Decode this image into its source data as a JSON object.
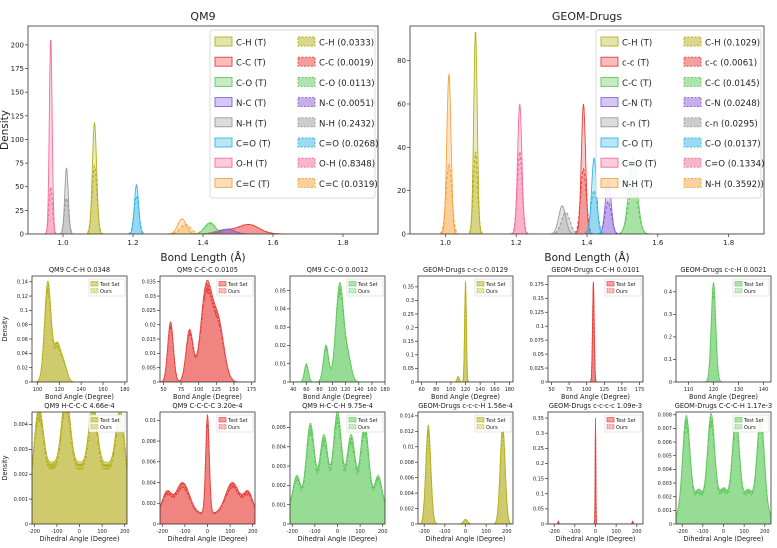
{
  "colors": {
    "olive": "#b5b01a",
    "red": "#e8403c",
    "green": "#5ec95a",
    "purple": "#8a5fd6",
    "gray": "#9a9a9a",
    "cyan": "#36b7e6",
    "pink": "#f56c9a",
    "orange": "#f5a33a",
    "grayDark": "#7b7b7b",
    "pinkDark": "#e2508f",
    "oliveDark": "#9a8a2a"
  },
  "chart_data": [
    {
      "type": "area",
      "title": "QM9",
      "xlabel": "Bond Length (Å)",
      "ylabel": "Density",
      "xlim": [
        0.9,
        1.9
      ],
      "ylim": [
        0,
        220
      ],
      "xticks": [
        1.0,
        1.2,
        1.4,
        1.6,
        1.8
      ],
      "yticks": [
        0,
        25,
        50,
        75,
        100,
        125,
        150,
        175,
        200
      ],
      "legend_position": "top-right",
      "legend_columns": [
        [
          "C-H (T)",
          "C-C (T)",
          "C-O (T)",
          "N-C (T)",
          "N-H (T)",
          "C=O (T)",
          "O-H (T)",
          "C=C (T)"
        ],
        [
          "C-H (0.0333)",
          "C-C (0.0019)",
          "C-O (0.0113)",
          "N-C (0.0051)",
          "N-H (0.2432)",
          "C=O (0.0268)",
          "O-H (0.8348)",
          "C=C (0.0319)"
        ]
      ],
      "series": [
        {
          "name": "C-H",
          "color": "olive",
          "peaks": [
            [
              1.09,
              0.006,
              118
            ]
          ],
          "pred_peaks": [
            [
              1.09,
              0.007,
              72
            ]
          ]
        },
        {
          "name": "C-C",
          "color": "red",
          "peaks": [
            [
              1.53,
              0.03,
              10
            ],
            [
              1.46,
              0.025,
              4
            ]
          ],
          "pred_peaks": [
            [
              1.53,
              0.03,
              10
            ],
            [
              1.46,
              0.025,
              4
            ]
          ]
        },
        {
          "name": "C-O",
          "color": "green",
          "peaks": [
            [
              1.42,
              0.015,
              12
            ]
          ],
          "pred_peaks": [
            [
              1.42,
              0.016,
              11
            ]
          ]
        },
        {
          "name": "N-C",
          "color": "purple",
          "peaks": [
            [
              1.47,
              0.02,
              5
            ]
          ],
          "pred_peaks": [
            [
              1.47,
              0.02,
              5
            ]
          ]
        },
        {
          "name": "N-H",
          "color": "gray",
          "peaks": [
            [
              1.01,
              0.005,
              70
            ]
          ],
          "pred_peaks": [
            [
              1.01,
              0.006,
              38
            ]
          ]
        },
        {
          "name": "C=O",
          "color": "cyan",
          "peaks": [
            [
              1.21,
              0.006,
              52
            ]
          ],
          "pred_peaks": [
            [
              1.21,
              0.007,
              40
            ]
          ]
        },
        {
          "name": "O-H",
          "color": "pink",
          "peaks": [
            [
              0.965,
              0.004,
              208
            ]
          ],
          "pred_peaks": [
            [
              0.965,
              0.005,
              50
            ]
          ]
        },
        {
          "name": "C=C",
          "color": "orange",
          "peaks": [
            [
              1.34,
              0.012,
              16
            ]
          ],
          "pred_peaks": [
            [
              1.35,
              0.015,
              10
            ]
          ]
        }
      ]
    },
    {
      "type": "area",
      "title": "GEOM-Drugs",
      "xlabel": "Bond Length (Å)",
      "ylabel": "",
      "xlim": [
        0.9,
        1.9
      ],
      "ylim": [
        0,
        96
      ],
      "xticks": [
        1.0,
        1.2,
        1.4,
        1.6,
        1.8
      ],
      "yticks": [
        0,
        20,
        40,
        60,
        80
      ],
      "legend_position": "top-right",
      "legend_columns": [
        [
          "C-H (T)",
          "c-c (T)",
          "C-C (T)",
          "C-N (T)",
          "c-n (T)",
          "C-O (T)",
          "C=O (T)",
          "N-H (T)"
        ],
        [
          "C-H (0.1029)",
          "c-c (0.0061)",
          "C-C (0.0145)",
          "C-N (0.0248)",
          "c-n (0.0295)",
          "C-O (0.0137)",
          "C=O (0.1334)",
          "N-H (0.3592))"
        ]
      ],
      "series": [
        {
          "name": "C-H",
          "color": "olive",
          "peaks": [
            [
              1.085,
              0.005,
              94
            ]
          ],
          "pred_peaks": [
            [
              1.085,
              0.006,
              38
            ]
          ]
        },
        {
          "name": "c-c",
          "color": "red",
          "peaks": [
            [
              1.39,
              0.006,
              60
            ]
          ],
          "pred_peaks": [
            [
              1.39,
              0.008,
              30
            ]
          ]
        },
        {
          "name": "C-C",
          "color": "green",
          "peaks": [
            [
              1.53,
              0.012,
              35
            ]
          ],
          "pred_peaks": [
            [
              1.53,
              0.013,
              22
            ]
          ]
        },
        {
          "name": "C-N",
          "color": "purple",
          "peaks": [
            [
              1.46,
              0.008,
              25
            ]
          ],
          "pred_peaks": [
            [
              1.46,
              0.009,
              15
            ]
          ]
        },
        {
          "name": "c-n",
          "color": "gray",
          "peaks": [
            [
              1.33,
              0.01,
              13
            ]
          ],
          "pred_peaks": [
            [
              1.34,
              0.012,
              10
            ]
          ]
        },
        {
          "name": "C-O",
          "color": "cyan",
          "peaks": [
            [
              1.42,
              0.007,
              35
            ]
          ],
          "pred_peaks": [
            [
              1.42,
              0.009,
              20
            ]
          ]
        },
        {
          "name": "C=O",
          "color": "pink",
          "peaks": [
            [
              1.21,
              0.006,
              60
            ]
          ],
          "pred_peaks": [
            [
              1.21,
              0.007,
              38
            ]
          ]
        },
        {
          "name": "N-H",
          "color": "orange",
          "peaks": [
            [
              1.01,
              0.006,
              74
            ]
          ],
          "pred_peaks": [
            [
              1.01,
              0.008,
              32
            ]
          ]
        }
      ]
    },
    {
      "type": "area",
      "title": "QM9 C-C-H 0.0348",
      "xlabel": "Bond Angle (Degree)",
      "ylabel": "Density",
      "color": "olive",
      "legend": [
        "Test Set",
        "Ours"
      ],
      "xlim": [
        95,
        182
      ],
      "ylim": [
        0,
        0.148
      ],
      "xticks": [
        100,
        120,
        140,
        160,
        180
      ],
      "yticks": [
        0.0,
        0.02,
        0.04,
        0.06,
        0.08,
        0.1,
        0.12,
        0.14
      ],
      "peaks": [
        [
          109.5,
          3,
          0.14
        ],
        [
          118,
          3,
          0.05
        ],
        [
          124,
          3,
          0.025
        ]
      ]
    },
    {
      "type": "area",
      "title": "QM9 C-C-C 0.0105",
      "xlabel": "Bond Angle (Degree)",
      "ylabel": "",
      "color": "red",
      "legend": [
        "Test Set",
        "Ours"
      ],
      "xlim": [
        45,
        180
      ],
      "ylim": [
        0,
        0.037
      ],
      "xticks": [
        50,
        75,
        100,
        125,
        150,
        175
      ],
      "yticks": [
        0.0,
        0.005,
        0.01,
        0.015,
        0.02,
        0.025,
        0.03,
        0.035
      ],
      "peaks": [
        [
          60,
          4,
          0.021
        ],
        [
          87,
          5,
          0.018
        ],
        [
          111,
          8,
          0.033
        ],
        [
          128,
          8,
          0.02
        ]
      ]
    },
    {
      "type": "area",
      "title": "QM9 C-C-O 0.0012",
      "xlabel": "Bond Angle (Degree)",
      "ylabel": "",
      "color": "green",
      "legend": [
        "Test Set",
        "Ours"
      ],
      "xlim": [
        35,
        180
      ],
      "ylim": [
        0,
        0.058
      ],
      "xticks": [
        40,
        60,
        80,
        100,
        120,
        140,
        160,
        180
      ],
      "yticks": [
        0.0,
        0.01,
        0.02,
        0.03,
        0.04,
        0.05
      ],
      "peaks": [
        [
          60,
          3,
          0.01
        ],
        [
          90,
          4,
          0.02
        ],
        [
          111,
          6,
          0.054
        ],
        [
          124,
          5,
          0.012
        ]
      ]
    },
    {
      "type": "area",
      "title": "GEOM-Drugs c-c-c 0.0129",
      "xlabel": "Bond Angle (Degree)",
      "ylabel": "",
      "color": "olive",
      "legend": [
        "Test Set",
        "Ours"
      ],
      "xlim": [
        55,
        185
      ],
      "ylim": [
        0,
        0.39
      ],
      "xticks": [
        60,
        80,
        100,
        120,
        140,
        160,
        180
      ],
      "yticks": [
        0.0,
        0.05,
        0.1,
        0.15,
        0.2,
        0.25,
        0.3,
        0.35
      ],
      "peaks": [
        [
          120,
          1.2,
          0.37
        ],
        [
          110,
          1.5,
          0.02
        ]
      ]
    },
    {
      "type": "area",
      "title": "GEOM-Drugs C-C-H 0.0101",
      "xlabel": "Bond Angle (Degree)",
      "ylabel": "",
      "color": "red",
      "legend": [
        "Test Set",
        "Ours"
      ],
      "xlim": [
        45,
        180
      ],
      "ylim": [
        0,
        0.19
      ],
      "xticks": [
        50,
        75,
        100,
        125,
        150,
        175
      ],
      "yticks": [
        0.0,
        0.025,
        0.05,
        0.075,
        0.1,
        0.125,
        0.15,
        0.175
      ],
      "peaks": [
        [
          109.5,
          1.2,
          0.18
        ]
      ]
    },
    {
      "type": "area",
      "title": "GEOM-Drugs c-c-H 0.0021",
      "xlabel": "Bond Angle (Degree)",
      "ylabel": "",
      "color": "green",
      "legend": [
        "Test Set",
        "Ours"
      ],
      "xlim": [
        105,
        143
      ],
      "ylim": [
        0,
        0.47
      ],
      "xticks": [
        110,
        120,
        130,
        140
      ],
      "yticks": [
        0.0,
        0.1,
        0.2,
        0.3,
        0.4
      ],
      "peaks": [
        [
          120,
          0.9,
          0.44
        ]
      ]
    },
    {
      "type": "area",
      "title": "QM9 H-C-C-C 4.66e-4",
      "xlabel": "Dihedral Angle (Degree)",
      "ylabel": "Density",
      "color": "olive",
      "legend": [
        "Test Set",
        "Ours"
      ],
      "xlim": [
        -210,
        210
      ],
      "ylim": [
        0,
        0.0045
      ],
      "xticks": [
        -200,
        -100,
        0,
        100,
        200
      ],
      "yticks": [
        0.0,
        0.001,
        0.002,
        0.003,
        0.004
      ],
      "peaks": [
        [
          -180,
          22,
          0.0038
        ],
        [
          -60,
          22,
          0.0042
        ],
        [
          60,
          22,
          0.0038
        ],
        [
          180,
          22,
          0.0037
        ],
        [
          -120,
          25,
          0.0015
        ],
        [
          0,
          25,
          0.0015
        ],
        [
          120,
          25,
          0.0015
        ]
      ],
      "base": 0.0008
    },
    {
      "type": "area",
      "title": "QM9 C-C-C-C 3.20e-4",
      "xlabel": "Dihedral Angle (Degree)",
      "ylabel": "",
      "color": "red",
      "legend": [
        "Test Set",
        "Ours"
      ],
      "xlim": [
        -210,
        210
      ],
      "ylim": [
        0,
        0.0108
      ],
      "xticks": [
        -200,
        -100,
        0,
        100,
        200
      ],
      "yticks": [
        0.0,
        0.002,
        0.004,
        0.006,
        0.008,
        0.01
      ],
      "peaks": [
        [
          0,
          8,
          0.0095
        ],
        [
          -110,
          30,
          0.003
        ],
        [
          110,
          30,
          0.003
        ],
        [
          -180,
          20,
          0.002
        ],
        [
          180,
          20,
          0.002
        ]
      ],
      "base": 0.001
    },
    {
      "type": "area",
      "title": "QM9 H-C-C-H 9.75e-4",
      "xlabel": "Dihedral Angle (Degree)",
      "ylabel": "",
      "color": "green",
      "legend": [
        "Test Set",
        "Ours"
      ],
      "xlim": [
        -210,
        210
      ],
      "ylim": [
        0,
        0.0058
      ],
      "xticks": [
        -200,
        -100,
        0,
        100,
        200
      ],
      "yticks": [
        0.0,
        0.001,
        0.002,
        0.003,
        0.004,
        0.005
      ],
      "peaks": [
        [
          -120,
          18,
          0.0042
        ],
        [
          -60,
          18,
          0.0036
        ],
        [
          0,
          18,
          0.0048
        ],
        [
          60,
          18,
          0.0036
        ],
        [
          120,
          18,
          0.0042
        ],
        [
          -180,
          15,
          0.0015
        ],
        [
          180,
          15,
          0.0015
        ]
      ],
      "base": 0.001
    },
    {
      "type": "area",
      "title": "GEOM-Drugs c-c-c-H 1.56e-4",
      "xlabel": "Dihedral Angle (Degree)",
      "ylabel": "",
      "color": "olive",
      "legend": [
        "Test Set",
        "Ours"
      ],
      "xlim": [
        -230,
        230
      ],
      "ylim": [
        0,
        0.0145
      ],
      "xticks": [
        -200,
        -100,
        0,
        100,
        200
      ],
      "yticks": [
        0.0,
        0.002,
        0.004,
        0.006,
        0.008,
        0.01,
        0.012,
        0.014
      ],
      "peaks": [
        [
          -180,
          12,
          0.0128
        ],
        [
          180,
          12,
          0.0128
        ],
        [
          0,
          10,
          0.0006
        ]
      ]
    },
    {
      "type": "area",
      "title": "GEOM-Drugs c-c-c-c 1.09e-3",
      "xlabel": "Dihedral Angle (Degree)",
      "ylabel": "",
      "color": "red",
      "legend": [
        "Test Set",
        "Ours"
      ],
      "xlim": [
        -230,
        230
      ],
      "ylim": [
        0,
        0.37
      ],
      "xticks": [
        -200,
        -100,
        0,
        100,
        200
      ],
      "yticks": [
        0.0,
        0.05,
        0.1,
        0.15,
        0.2,
        0.25,
        0.3,
        0.35
      ],
      "peaks": [
        [
          0,
          1.6,
          0.35
        ],
        [
          -180,
          2,
          0.01
        ],
        [
          180,
          2,
          0.01
        ]
      ]
    },
    {
      "type": "area",
      "title": "GEOM-Drugs C-C-C-H 1.17e-3",
      "xlabel": "Dihedral Angle (Degree)",
      "ylabel": "",
      "color": "green",
      "legend": [
        "Test Set",
        "Ours"
      ],
      "xlim": [
        -230,
        230
      ],
      "ylim": [
        0,
        0.0082
      ],
      "xticks": [
        -200,
        -100,
        0,
        100,
        200
      ],
      "yticks": [
        0.0,
        0.001,
        0.002,
        0.003,
        0.004,
        0.005,
        0.006,
        0.007,
        0.008
      ],
      "peaks": [
        [
          -180,
          18,
          0.0074
        ],
        [
          -60,
          18,
          0.0075
        ],
        [
          60,
          18,
          0.0072
        ],
        [
          180,
          18,
          0.0074
        ],
        [
          -120,
          22,
          0.002
        ],
        [
          0,
          22,
          0.0021
        ],
        [
          120,
          22,
          0.002
        ]
      ],
      "base": 0.0005
    }
  ]
}
